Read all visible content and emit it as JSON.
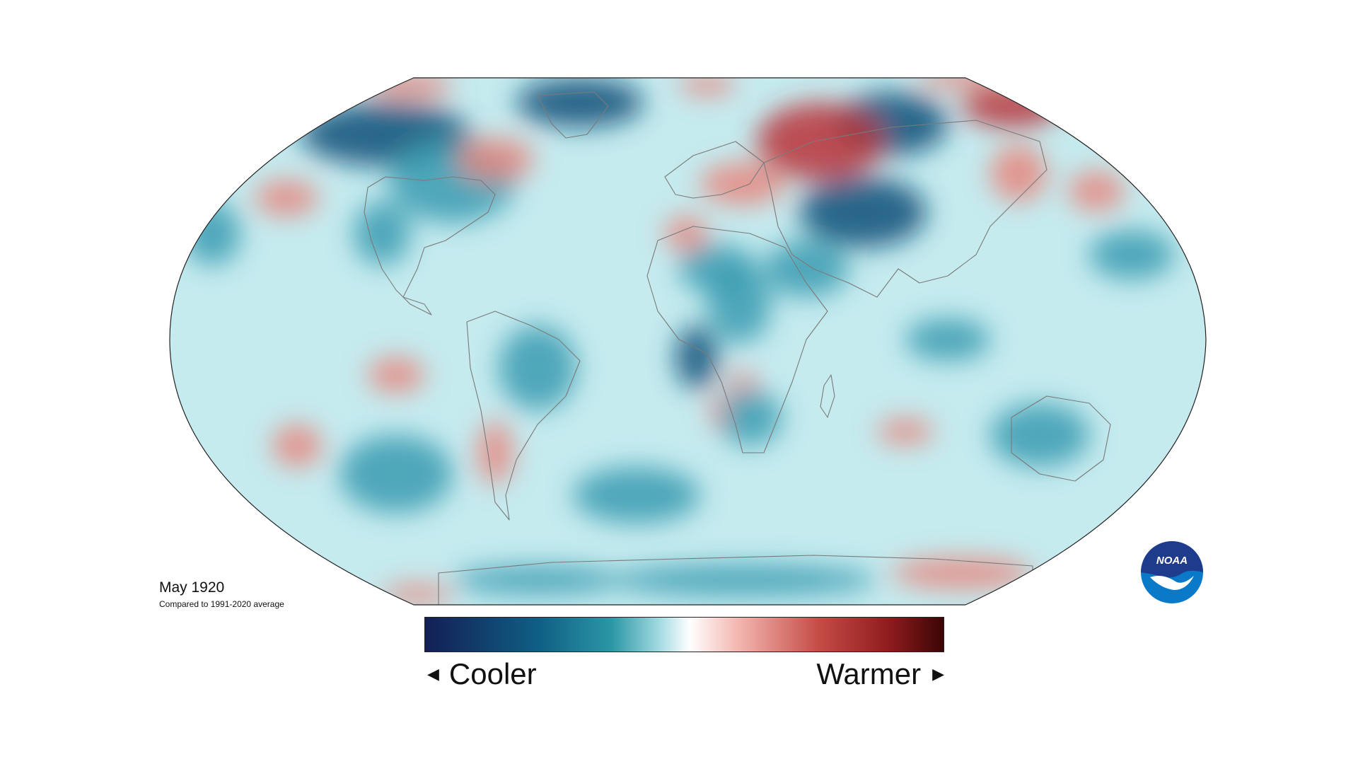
{
  "map": {
    "date_label": "May 1920",
    "subtitle": "Compared to 1991-2020 average",
    "projection": "Robinson",
    "variable": "temperature anomaly"
  },
  "legend": {
    "cooler_label": "Cooler",
    "warmer_label": "Warmer",
    "colors": [
      "#131f55",
      "#0f5f84",
      "#2b97a6",
      "#aee0e6",
      "#ffffff",
      "#f4b9b3",
      "#c54b45",
      "#8c1a1c",
      "#3b0505"
    ]
  },
  "palette": {
    "ocean_base": "#c5ebef",
    "warm": "#e7857c",
    "warm_strong": "#b8343a",
    "cool": "#3a9bb0",
    "cool_strong": "#0f4f78",
    "coastline": "#7a7a7a",
    "frame": "#222222"
  },
  "logo": {
    "text": "NOAA",
    "top_color": "#1f3b8c",
    "bottom_color": "#0a79c8",
    "bird_color": "#ffffff"
  }
}
